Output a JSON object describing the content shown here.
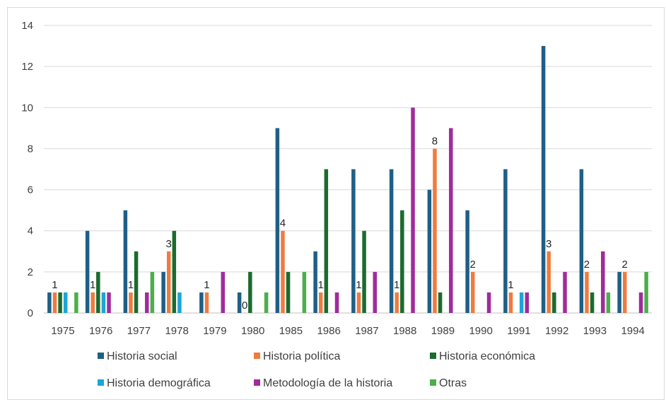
{
  "colors": {
    "Historia social": "#1f5f86",
    "Historia política": "#f07b3f",
    "Historia económica": "#1b6b2f",
    "Historia demográfica": "#1ba5d8",
    "Metodología de la historia": "#a02b9b",
    "Otras": "#4cae4c"
  },
  "chart_data": {
    "type": "bar",
    "title": "",
    "xlabel": "",
    "ylabel": "",
    "ylim": [
      0,
      14
    ],
    "yticks": [
      "0",
      "2",
      "4",
      "6",
      "8",
      "10",
      "12",
      "14"
    ],
    "grid": true,
    "legend_position": "bottom",
    "categories": [
      "1975",
      "1976",
      "1977",
      "1978",
      "1979",
      "1980",
      "1985",
      "1986",
      "1987",
      "1988",
      "1989",
      "1990",
      "1991",
      "1992",
      "1993",
      "1994"
    ],
    "series": [
      {
        "name": "Historia social",
        "values": [
          1,
          4,
          5,
          2,
          1,
          1,
          9,
          3,
          7,
          7,
          6,
          5,
          7,
          13,
          7,
          2
        ]
      },
      {
        "name": "Historia política",
        "values": [
          1,
          1,
          1,
          3,
          1,
          0,
          4,
          1,
          1,
          1,
          8,
          2,
          1,
          3,
          2,
          2
        ]
      },
      {
        "name": "Historia económica",
        "values": [
          1,
          2,
          3,
          4,
          0,
          2,
          2,
          7,
          4,
          5,
          1,
          0,
          0,
          1,
          1,
          0
        ]
      },
      {
        "name": "Historia demográfica",
        "values": [
          1,
          1,
          0,
          1,
          0,
          0,
          0,
          0,
          0,
          0,
          0,
          0,
          1,
          0,
          0,
          0
        ]
      },
      {
        "name": "Metodología de la historia",
        "values": [
          0,
          1,
          1,
          0,
          2,
          0,
          0,
          1,
          2,
          10,
          9,
          1,
          1,
          2,
          3,
          1
        ]
      },
      {
        "name": "Otras",
        "values": [
          1,
          0,
          2,
          0,
          0,
          1,
          2,
          0,
          0,
          0,
          0,
          0,
          0,
          0,
          1,
          2
        ]
      }
    ],
    "data_labels": {
      "series": "Historia política",
      "text": [
        "1",
        "1",
        "1",
        "3",
        "1",
        "0",
        "4",
        "1",
        "1",
        "1",
        "8",
        "2",
        "1",
        "3",
        "2",
        "2"
      ]
    }
  }
}
